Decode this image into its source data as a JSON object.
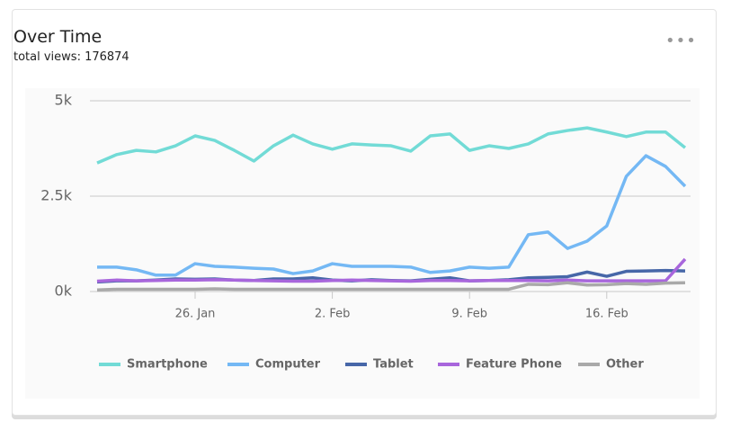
{
  "chart_data": {
    "type": "line",
    "title": "Over Time",
    "subtitle": "total views: 176874",
    "categories": [
      null,
      null,
      null,
      null,
      null,
      "26. Jan",
      null,
      null,
      null,
      null,
      null,
      null,
      "2. Feb",
      null,
      null,
      null,
      null,
      null,
      null,
      "9. Feb",
      null,
      null,
      null,
      null,
      null,
      null,
      "16. Feb",
      null,
      null,
      null,
      null
    ],
    "ylim": [
      0,
      5000
    ],
    "yticks": [
      {
        "value": 0,
        "label": "0k"
      },
      {
        "value": 2500,
        "label": "2.5k"
      },
      {
        "value": 5000,
        "label": "5k"
      }
    ],
    "grid": true,
    "series": [
      {
        "name": "Smartphone",
        "color": "#72dbd6",
        "values": [
          3370,
          3590,
          3700,
          3660,
          3820,
          4080,
          3960,
          3700,
          3420,
          3820,
          4100,
          3870,
          3730,
          3870,
          3840,
          3820,
          3680,
          4080,
          4130,
          3700,
          3820,
          3750,
          3870,
          4130,
          4220,
          4290,
          4180,
          4060,
          4180,
          4180,
          3770
        ]
      },
      {
        "name": "Computer",
        "color": "#74b8f4",
        "values": [
          640,
          640,
          570,
          430,
          430,
          730,
          660,
          640,
          610,
          590,
          470,
          540,
          730,
          660,
          660,
          660,
          640,
          500,
          540,
          640,
          610,
          640,
          1490,
          1560,
          1130,
          1320,
          1720,
          3020,
          3560,
          3280,
          2760
        ]
      },
      {
        "name": "Tablet",
        "color": "#4767a8",
        "values": [
          250,
          280,
          280,
          300,
          330,
          320,
          330,
          300,
          290,
          330,
          330,
          360,
          300,
          280,
          310,
          290,
          280,
          320,
          360,
          280,
          290,
          310,
          360,
          370,
          390,
          510,
          400,
          530,
          540,
          550,
          540
        ]
      },
      {
        "name": "Feature Phone",
        "color": "#a866dc",
        "values": [
          270,
          300,
          280,
          290,
          300,
          300,
          310,
          300,
          290,
          280,
          270,
          270,
          290,
          300,
          290,
          280,
          270,
          290,
          290,
          280,
          290,
          290,
          290,
          280,
          300,
          280,
          280,
          280,
          280,
          280,
          850
        ]
      },
      {
        "name": "Other",
        "color": "#a9a9a9",
        "values": [
          40,
          60,
          60,
          60,
          60,
          60,
          70,
          60,
          60,
          60,
          60,
          60,
          60,
          60,
          60,
          60,
          60,
          60,
          60,
          60,
          60,
          60,
          190,
          180,
          230,
          170,
          180,
          210,
          190,
          220,
          230
        ]
      }
    ]
  }
}
